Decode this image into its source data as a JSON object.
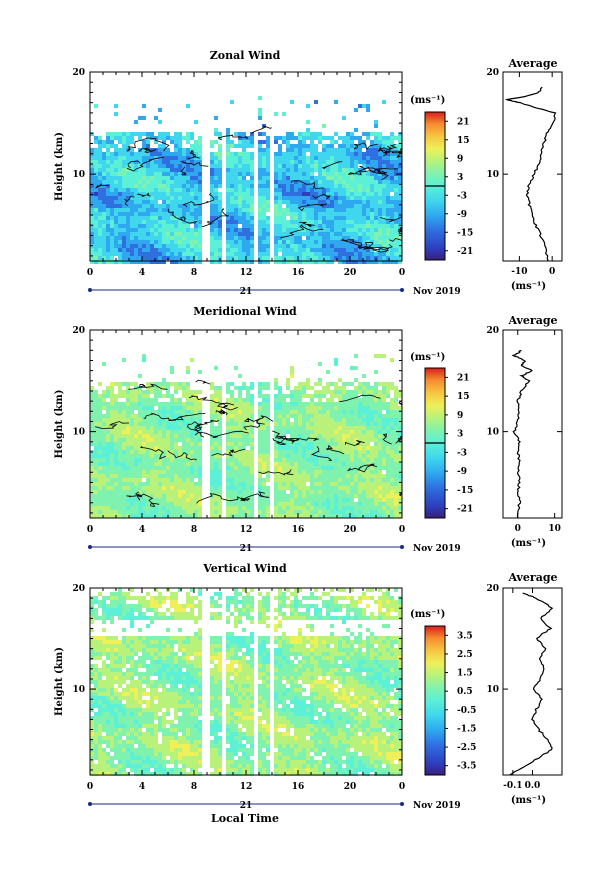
{
  "common": {
    "y_label": "Height (km)",
    "x_label": "Local Time",
    "date_label": "Nov 2019",
    "day_label": "21",
    "x_ticks": [
      "0",
      "4",
      "8",
      "12",
      "16",
      "20",
      "0"
    ],
    "y_ticks": [
      "10",
      "20"
    ],
    "unit_label": "(ms⁻¹)",
    "avg_title": "Average",
    "gap_hours": [
      [
        8.6,
        9.1
      ],
      [
        10.0,
        10.3
      ],
      [
        12.5,
        12.8
      ],
      [
        13.8,
        14.1
      ]
    ]
  },
  "colormap": [
    "#3a1f7a",
    "#2d3fbf",
    "#2f6fe0",
    "#2fa8ef",
    "#3fd6ee",
    "#5cf0d6",
    "#7ff2b0",
    "#b8f27a",
    "#eef05a",
    "#f7c240",
    "#f58a30",
    "#ef4a2a",
    "#d81e1e"
  ],
  "chart_data": [
    {
      "type": "heatmap",
      "title": "Zonal Wind",
      "xlabel": "Local Time",
      "ylabel": "Height (km)",
      "xlim": [
        0,
        24
      ],
      "ylim": [
        1.5,
        20
      ],
      "colorbar_ticks": [
        "21",
        "15",
        "9",
        "3",
        "-3",
        "-9",
        "-15",
        "-21"
      ],
      "colorbar_range": [
        -24,
        24
      ],
      "colorbar_zero_line": 0,
      "dominant_value_range": [
        -14,
        -2
      ],
      "data_top_km": 14.5,
      "sparse_top_km": 18,
      "profile": {
        "title": "Average",
        "xlim": [
          -15,
          3
        ],
        "xticks": [
          "-10",
          "0"
        ],
        "xlabel": "(ms⁻¹)",
        "height_km": [
          1.5,
          3,
          4,
          5,
          6,
          7,
          8,
          9,
          10,
          11,
          12,
          13,
          14,
          15,
          16,
          16.5,
          17,
          17.3,
          17.6,
          18,
          18.5
        ],
        "values": [
          -1.5,
          -2,
          -3.5,
          -5,
          -6,
          -7,
          -7.5,
          -7,
          -5.5,
          -4,
          -3.5,
          -2.5,
          -1.5,
          0.5,
          1,
          -5,
          -10,
          -14,
          -8,
          -4,
          -3
        ]
      }
    },
    {
      "type": "heatmap",
      "title": "Meridional Wind",
      "xlabel": "Local Time",
      "ylabel": "Height (km)",
      "xlim": [
        0,
        24
      ],
      "ylim": [
        1.5,
        20
      ],
      "colorbar_ticks": [
        "21",
        "15",
        "9",
        "3",
        "-3",
        "-9",
        "-15",
        "-21"
      ],
      "colorbar_range": [
        -24,
        24
      ],
      "colorbar_zero_line": 0,
      "dominant_value_range": [
        -3,
        5
      ],
      "data_top_km": 15,
      "sparse_top_km": 18,
      "profile": {
        "title": "Average",
        "xlim": [
          -4,
          12
        ],
        "xticks": [
          "0",
          "10"
        ],
        "xlabel": "(ms⁻¹)",
        "height_km": [
          1.5,
          3,
          4,
          5,
          6,
          7,
          8,
          9,
          10,
          11,
          12,
          13,
          14,
          15,
          15.5,
          16,
          16.5,
          17,
          17.5,
          18
        ],
        "values": [
          0,
          0.5,
          0,
          0.5,
          0,
          0.5,
          0,
          0.5,
          -1,
          0,
          0.5,
          0,
          1,
          3,
          1,
          4,
          1,
          2,
          -1,
          1
        ]
      }
    },
    {
      "type": "heatmap",
      "title": "Vertical Wind",
      "xlabel": "Local Time",
      "ylabel": "Height (km)",
      "xlim": [
        0,
        24
      ],
      "ylim": [
        1.5,
        20
      ],
      "colorbar_ticks": [
        "3.5",
        "2.5",
        "1.5",
        "0.5",
        "-0.5",
        "-1.5",
        "-2.5",
        "-3.5"
      ],
      "colorbar_range": [
        -4,
        4
      ],
      "dominant_value_range": [
        -0.5,
        1
      ],
      "data_top_km": 19.5,
      "sparse_top_km": 19.5,
      "profile": {
        "title": "Average",
        "xlim": [
          -0.15,
          0.15
        ],
        "xticks": [
          "-0.1",
          "0.0"
        ],
        "xlabel": "(ms⁻¹)",
        "height_km": [
          1.5,
          2.5,
          3.5,
          4,
          5,
          6,
          7,
          8,
          9,
          10,
          11,
          12,
          13,
          14,
          15,
          16,
          17,
          18,
          19,
          19.5
        ],
        "values": [
          -0.12,
          -0.02,
          0.05,
          0.1,
          0.08,
          0.03,
          0.0,
          0.02,
          0.05,
          0.0,
          0.04,
          0.06,
          0.03,
          0.07,
          0.02,
          0.09,
          0.04,
          0.1,
          0.02,
          -0.05
        ]
      }
    }
  ]
}
